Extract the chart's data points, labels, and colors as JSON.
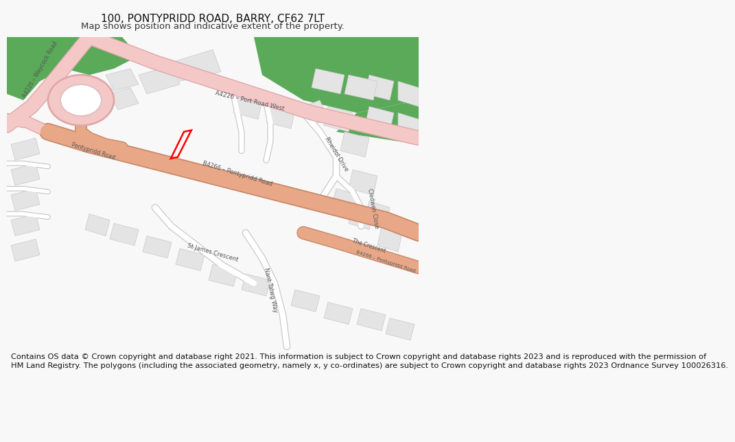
{
  "title_line1": "100, PONTYPRIDD ROAD, BARRY, CF62 7LT",
  "title_line2": "Map shows position and indicative extent of the property.",
  "title_fontsize": 11,
  "subtitle_fontsize": 9.5,
  "footer_text": "Contains OS data © Crown copyright and database right 2021. This information is subject to Crown copyright and database rights 2023 and is reproduced with the permission of\nHM Land Registry. The polygons (including the associated geometry, namely x, y co-ordinates) are subject to Crown copyright and database rights 2023 Ordnance Survey 100026316.",
  "footer_fontsize": 8.2,
  "bg_color": "#f8f8f8",
  "map_bg": "#ffffff",
  "road_pink": "#f5c8c8",
  "road_pink_ol": "#dea8a8",
  "road_salmon": "#e8a888",
  "road_salmon_ol": "#c88868",
  "road_white": "#ffffff",
  "road_white_ol": "#c0c0c0",
  "building_fill": "#e4e4e4",
  "building_edge": "#c8c8c8",
  "green1": "#5aaa5a",
  "green2": "#6aba6a",
  "plot_color": "#ff0000",
  "plot_lw": 1.8,
  "label_color": "#555555",
  "label_fs": 6.2,
  "title_color": "#111111",
  "footer_color": "#111111"
}
